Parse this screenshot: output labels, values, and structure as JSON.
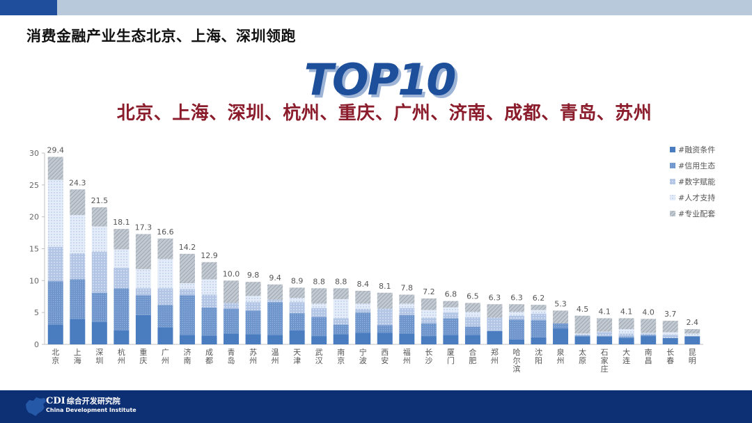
{
  "page": {
    "title": "消费金融产业生态北京、上海、深圳领跑",
    "top10_label": "TOP10",
    "top10_cities": "北京、上海、深圳、杭州、重庆、广州、济南、成都、青岛、苏州"
  },
  "footer": {
    "org_abbr": "CDI",
    "org_name_cn": "综合开发研究院",
    "org_name_en": "China Development Institute"
  },
  "colors": {
    "accent_dark": "#1f4e9c",
    "accent_light": "#b9c9dc",
    "city_text": "#8b1c2c",
    "footer_bg": "#0d2f73"
  },
  "chart_data": {
    "type": "bar",
    "stacked": true,
    "ylim": [
      0,
      30
    ],
    "yticks": [
      0,
      5,
      10,
      15,
      20,
      25,
      30
    ],
    "categories": [
      "北京",
      "上海",
      "深圳",
      "杭州",
      "重庆",
      "广州",
      "济南",
      "成都",
      "青岛",
      "苏州",
      "温州",
      "天津",
      "武汉",
      "南京",
      "宁波",
      "西安",
      "福州",
      "长沙",
      "厦门",
      "合肥",
      "郑州",
      "哈尔滨",
      "沈阳",
      "泉州",
      "太原",
      "石家庄",
      "大连",
      "南昌",
      "长春",
      "昆明"
    ],
    "totals": [
      29.4,
      24.3,
      21.5,
      18.1,
      17.3,
      16.6,
      14.2,
      12.9,
      10.0,
      9.8,
      9.4,
      8.9,
      8.8,
      8.8,
      8.4,
      8.1,
      7.8,
      7.2,
      6.8,
      6.5,
      6.3,
      6.3,
      6.2,
      5.3,
      4.5,
      4.1,
      4.1,
      4.0,
      3.7,
      2.4
    ],
    "total_labels": [
      "29.4",
      "24.3",
      "21.5",
      "18.1",
      "17.3",
      "16.6",
      "14.2",
      "12.9",
      "10.0",
      "9.8",
      "9.4",
      "8.9",
      "8.8",
      "8.8",
      "8.4",
      "8.1",
      "7.8",
      "7.2",
      "6.8",
      "6.5",
      "6.3",
      "6.3",
      "6.2",
      "5.3",
      "4.5",
      "4.1",
      "4.1",
      "4.0",
      "3.7",
      "2.4"
    ],
    "series": [
      {
        "name": "#融资条件",
        "color": "#4a7cc0",
        "pattern": "solid",
        "values": [
          3.1,
          4.0,
          3.5,
          2.2,
          4.6,
          2.7,
          1.5,
          1.4,
          1.7,
          1.6,
          1.5,
          2.2,
          1.3,
          1.6,
          1.8,
          1.8,
          1.7,
          1.3,
          1.5,
          1.5,
          2.1,
          0.8,
          1.1,
          2.5,
          1.2,
          1.2,
          1.0,
          1.3,
          1.0,
          1.2
        ]
      },
      {
        "name": "#信用生态",
        "color": "#6f96cc",
        "pattern": "dots-dense",
        "values": [
          6.8,
          6.2,
          4.6,
          6.6,
          3.1,
          3.5,
          6.2,
          4.4,
          3.9,
          3.7,
          5.1,
          2.7,
          3.0,
          1.5,
          3.2,
          1.2,
          2.9,
          2.0,
          2.6,
          1.3,
          0.0,
          3.1,
          2.7,
          0.8,
          0.2,
          0.1,
          0.2,
          0.2,
          0.0,
          0.1
        ]
      },
      {
        "name": "#数字赋能",
        "color": "#a8bde0",
        "pattern": "dots",
        "values": [
          5.4,
          4.1,
          6.4,
          3.2,
          1.1,
          2.6,
          1.0,
          2.0,
          0.9,
          1.3,
          0.4,
          1.7,
          1.4,
          1.0,
          0.6,
          2.6,
          1.1,
          0.9,
          0.9,
          1.5,
          2.1,
          0.6,
          1.0,
          0.0,
          0.2,
          0.6,
          0.5,
          0.2,
          0.5,
          0.0
        ]
      },
      {
        "name": "#人才支持",
        "color": "#dce7f5",
        "pattern": "dots-light",
        "values": [
          10.5,
          6.0,
          4.0,
          2.9,
          3.0,
          4.6,
          0.9,
          2.4,
          0.0,
          1.0,
          0.0,
          0.7,
          0.7,
          3.0,
          0.8,
          0.0,
          0.7,
          1.2,
          0.8,
          0.8,
          0.0,
          0.6,
          0.6,
          0.0,
          0.1,
          0.1,
          0.7,
          0.1,
          0.4,
          0.4
        ]
      },
      {
        "name": "#专业配套",
        "color": "#b3bcc6",
        "pattern": "diagonal",
        "values": [
          3.6,
          4.0,
          3.0,
          3.2,
          5.5,
          3.2,
          4.6,
          2.7,
          3.5,
          2.2,
          2.4,
          1.6,
          2.4,
          1.7,
          2.0,
          2.5,
          1.4,
          1.8,
          1.0,
          1.4,
          2.1,
          1.2,
          0.8,
          2.0,
          2.8,
          2.1,
          1.7,
          2.2,
          1.8,
          0.7
        ]
      }
    ],
    "grid": false,
    "legend_position": "top-right"
  }
}
